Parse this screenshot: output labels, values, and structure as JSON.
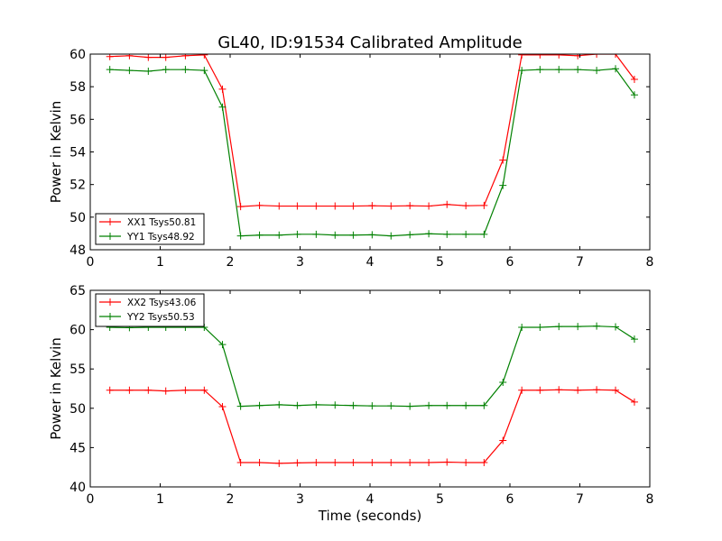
{
  "figure_title": "GL40, ID:91534 Calibrated Amplitude",
  "xlabel": "Time (seconds)",
  "ylabel": "Power in Kelvin",
  "chart_data": [
    {
      "type": "line",
      "title": "GL40, ID:91534 Calibrated Amplitude",
      "xlabel": "",
      "ylabel": "Power in Kelvin",
      "xlim": [
        0,
        8
      ],
      "ylim": [
        48,
        60
      ],
      "xticks": [
        0,
        1,
        2,
        3,
        4,
        5,
        6,
        7,
        8
      ],
      "yticks": [
        48,
        50,
        52,
        54,
        56,
        58,
        60
      ],
      "grid": false,
      "legend": "lower-left",
      "x": [
        0.28,
        0.56,
        0.83,
        1.08,
        1.36,
        1.63,
        1.89,
        2.15,
        2.42,
        2.7,
        2.96,
        3.23,
        3.5,
        3.76,
        4.03,
        4.3,
        4.57,
        4.84,
        5.1,
        5.37,
        5.63,
        5.9,
        6.17,
        6.43,
        6.7,
        6.97,
        7.24,
        7.51,
        7.78
      ],
      "series": [
        {
          "name": "XX1 Tsys50.81",
          "color": "#ff0000",
          "values": [
            59.85,
            59.9,
            59.8,
            59.8,
            59.9,
            59.95,
            57.85,
            50.65,
            50.72,
            50.68,
            50.68,
            50.68,
            50.68,
            50.68,
            50.7,
            50.68,
            50.7,
            50.68,
            50.78,
            50.7,
            50.72,
            53.5,
            59.95,
            59.95,
            59.95,
            59.9,
            60.0,
            60.0,
            58.45
          ]
        },
        {
          "name": "YY1 Tsys48.92",
          "color": "#008000",
          "values": [
            59.05,
            59.0,
            58.95,
            59.05,
            59.05,
            59.0,
            56.75,
            48.85,
            48.9,
            48.9,
            48.95,
            48.95,
            48.9,
            48.9,
            48.92,
            48.85,
            48.92,
            48.98,
            48.95,
            48.95,
            48.95,
            51.95,
            59.0,
            59.05,
            59.05,
            59.05,
            59.0,
            59.1,
            57.5
          ]
        }
      ]
    },
    {
      "type": "line",
      "title": "",
      "xlabel": "Time (seconds)",
      "ylabel": "Power in Kelvin",
      "xlim": [
        0,
        8
      ],
      "ylim": [
        40,
        65
      ],
      "xticks": [
        0,
        1,
        2,
        3,
        4,
        5,
        6,
        7,
        8
      ],
      "yticks": [
        40,
        45,
        50,
        55,
        60,
        65
      ],
      "grid": false,
      "legend": "upper-left",
      "x": [
        0.28,
        0.56,
        0.83,
        1.08,
        1.36,
        1.63,
        1.89,
        2.15,
        2.42,
        2.7,
        2.96,
        3.23,
        3.5,
        3.76,
        4.03,
        4.3,
        4.57,
        4.84,
        5.1,
        5.37,
        5.63,
        5.9,
        6.17,
        6.43,
        6.7,
        6.97,
        7.24,
        7.51,
        7.78
      ],
      "series": [
        {
          "name": "XX2 Tsys43.06",
          "color": "#ff0000",
          "values": [
            52.3,
            52.3,
            52.3,
            52.2,
            52.3,
            52.3,
            50.2,
            43.1,
            43.1,
            43.0,
            43.05,
            43.1,
            43.1,
            43.1,
            43.1,
            43.1,
            43.1,
            43.1,
            43.15,
            43.1,
            43.1,
            45.9,
            52.3,
            52.3,
            52.35,
            52.3,
            52.35,
            52.3,
            50.8
          ]
        },
        {
          "name": "YY2 Tsys50.53",
          "color": "#008000",
          "values": [
            60.3,
            60.25,
            60.3,
            60.3,
            60.3,
            60.3,
            58.1,
            50.25,
            50.35,
            50.45,
            50.35,
            50.45,
            50.4,
            50.35,
            50.3,
            50.3,
            50.25,
            50.35,
            50.35,
            50.35,
            50.35,
            53.3,
            60.3,
            60.3,
            60.4,
            60.4,
            60.45,
            60.35,
            58.8
          ]
        }
      ]
    }
  ]
}
